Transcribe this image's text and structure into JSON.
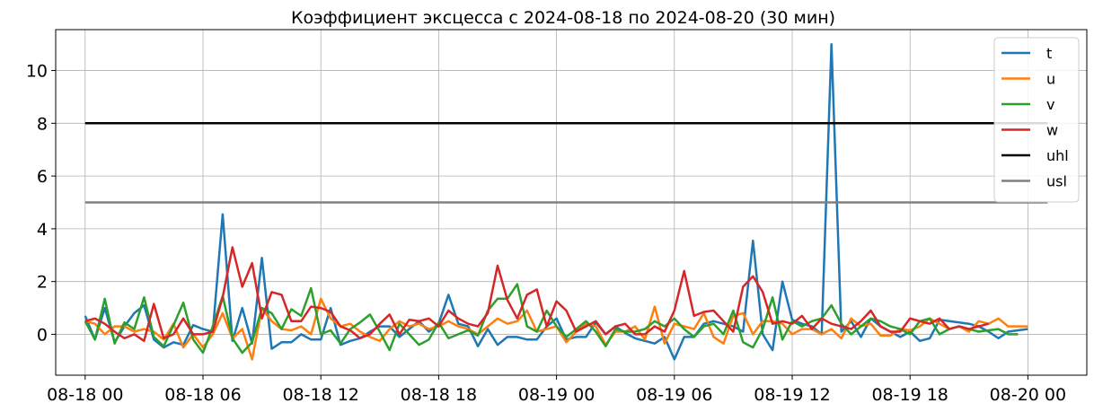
{
  "chart_data": {
    "type": "line",
    "title": "Коэффициент эксцесса с 2024-08-18 по 2024-08-20 (30 мин)",
    "xlabel": "",
    "ylabel": "",
    "x_start": "2024-08-18 00:00",
    "x_end": "2024-08-20 00:00",
    "x_step_minutes": 30,
    "xlim": [
      "2024-08-17 22:30",
      "2024-08-20 03:00"
    ],
    "ylim": [
      -1.55,
      11.55
    ],
    "x_ticks": [
      {
        "value": "2024-08-18 00:00",
        "label": "08-18 00"
      },
      {
        "value": "2024-08-18 06:00",
        "label": "08-18 06"
      },
      {
        "value": "2024-08-18 12:00",
        "label": "08-18 12"
      },
      {
        "value": "2024-08-18 18:00",
        "label": "08-18 18"
      },
      {
        "value": "2024-08-19 00:00",
        "label": "08-19 00"
      },
      {
        "value": "2024-08-19 06:00",
        "label": "08-19 06"
      },
      {
        "value": "2024-08-19 12:00",
        "label": "08-19 12"
      },
      {
        "value": "2024-08-19 18:00",
        "label": "08-19 18"
      },
      {
        "value": "2024-08-20 00:00",
        "label": "08-20 00"
      }
    ],
    "y_ticks": [
      0,
      2,
      4,
      6,
      8,
      10
    ],
    "grid": true,
    "legend_position": "top-right",
    "series": [
      {
        "name": "t",
        "color": "#1f77b4",
        "values": [
          0.7,
          -0.2,
          1.0,
          -0.3,
          0.3,
          0.8,
          1.1,
          -0.2,
          -0.5,
          -0.3,
          -0.4,
          0.35,
          0.2,
          0.1,
          4.55,
          -0.25,
          1.0,
          -0.35,
          2.9,
          -0.55,
          -0.3,
          -0.3,
          0.0,
          -0.2,
          -0.2,
          1.0,
          -0.4,
          -0.25,
          -0.15,
          0.1,
          0.3,
          0.3,
          -0.1,
          0.2,
          0.5,
          0.1,
          0.4,
          1.5,
          0.4,
          0.3,
          -0.45,
          0.2,
          -0.4,
          -0.1,
          -0.1,
          -0.2,
          -0.2,
          0.3,
          0.6,
          -0.2,
          -0.1,
          -0.1,
          0.45,
          0.0,
          0.3,
          0.05,
          -0.15,
          -0.25,
          -0.35,
          -0.1,
          -0.95,
          -0.1,
          -0.1,
          0.4,
          0.5,
          0.4,
          0.3,
          0.1,
          3.55,
          0.0,
          -0.6,
          2.0,
          0.55,
          0.4,
          0.3,
          0.0,
          11.0,
          0.1,
          0.5,
          -0.1,
          0.6,
          0.3,
          0.1,
          -0.1,
          0.1,
          -0.25,
          -0.15,
          0.55,
          0.5,
          0.45,
          0.4,
          0.3,
          0.1,
          -0.15,
          0.1,
          0.15,
          0.2
        ]
      },
      {
        "name": "u",
        "color": "#ff7f0e",
        "values": [
          0.5,
          0.4,
          0.0,
          0.3,
          0.3,
          0.1,
          0.2,
          0.1,
          -0.2,
          0.4,
          -0.5,
          0.0,
          -0.5,
          0.0,
          0.8,
          -0.15,
          0.2,
          -0.95,
          1.0,
          0.5,
          0.2,
          0.15,
          0.3,
          0.0,
          1.35,
          0.6,
          0.3,
          0.4,
          0.1,
          -0.1,
          -0.25,
          0.2,
          0.5,
          0.3,
          0.4,
          0.2,
          0.3,
          0.5,
          0.3,
          0.2,
          0.0,
          0.3,
          0.6,
          0.4,
          0.5,
          0.9,
          0.1,
          0.2,
          0.3,
          -0.3,
          0.1,
          0.4,
          0.3,
          -0.4,
          0.1,
          0.1,
          0.3,
          -0.2,
          1.05,
          -0.35,
          0.4,
          0.3,
          0.2,
          0.8,
          -0.1,
          -0.35,
          0.7,
          0.8,
          0.0,
          0.5,
          0.5,
          0.4,
          0.0,
          0.2,
          0.2,
          0.0,
          0.2,
          -0.15,
          0.6,
          0.3,
          0.4,
          -0.05,
          -0.05,
          0.2,
          0.15,
          0.3,
          0.6,
          0.4,
          0.2,
          0.3,
          0.1,
          0.5,
          0.4,
          0.6,
          0.3,
          0.3,
          0.3
        ]
      },
      {
        "name": "v",
        "color": "#2ca02c",
        "values": [
          0.5,
          -0.2,
          1.35,
          -0.35,
          0.45,
          0.2,
          1.4,
          -0.1,
          -0.45,
          0.35,
          1.2,
          -0.2,
          -0.7,
          0.3,
          1.45,
          -0.15,
          -0.7,
          -0.3,
          1.0,
          0.8,
          0.2,
          0.95,
          0.7,
          1.75,
          0.0,
          0.15,
          -0.35,
          0.2,
          0.45,
          0.75,
          0.1,
          -0.6,
          0.4,
          0.0,
          -0.4,
          -0.2,
          0.45,
          -0.15,
          0.0,
          0.15,
          -0.05,
          0.9,
          1.35,
          1.35,
          1.9,
          0.3,
          0.1,
          0.9,
          0.3,
          -0.1,
          0.2,
          0.5,
          0.1,
          -0.45,
          0.2,
          0.1,
          0.1,
          0.2,
          0.5,
          0.3,
          0.6,
          0.2,
          -0.1,
          0.3,
          0.4,
          0.0,
          0.9,
          -0.3,
          -0.5,
          0.2,
          1.4,
          -0.2,
          0.5,
          0.3,
          0.5,
          0.6,
          1.1,
          0.4,
          0.0,
          0.3,
          0.6,
          0.5,
          0.3,
          0.2,
          0.0,
          0.5,
          0.6,
          0.0,
          0.2,
          0.3,
          0.2,
          0.1,
          0.15,
          0.2,
          0.0,
          0.0
        ]
      },
      {
        "name": "w",
        "color": "#d62728",
        "values": [
          0.5,
          0.6,
          0.4,
          0.1,
          -0.15,
          0.0,
          -0.25,
          1.15,
          -0.15,
          0.0,
          0.6,
          0.0,
          0.0,
          0.1,
          1.4,
          3.3,
          1.8,
          2.7,
          0.6,
          1.6,
          1.5,
          0.5,
          0.5,
          1.05,
          1.0,
          0.85,
          0.3,
          0.15,
          -0.15,
          0.0,
          0.4,
          0.75,
          0.0,
          0.55,
          0.5,
          0.6,
          0.3,
          0.9,
          0.6,
          0.4,
          0.3,
          0.8,
          2.6,
          1.3,
          0.6,
          1.5,
          1.7,
          0.3,
          1.25,
          0.9,
          0.1,
          0.3,
          0.5,
          0.0,
          0.3,
          0.4,
          0.0,
          0.0,
          0.3,
          0.1,
          0.9,
          2.4,
          0.7,
          0.85,
          0.9,
          0.5,
          0.1,
          1.8,
          2.2,
          1.6,
          0.4,
          0.5,
          0.4,
          0.7,
          0.2,
          0.6,
          0.4,
          0.3,
          0.2,
          0.5,
          0.9,
          0.3,
          0.1,
          0.1,
          0.6,
          0.5,
          0.4,
          0.6,
          0.2,
          0.3,
          0.2,
          0.3,
          0.4
        ]
      },
      {
        "name": "uhl",
        "color": "#000000",
        "values": [
          8,
          8
        ]
      },
      {
        "name": "usl",
        "color": "#808080",
        "values": [
          5,
          5
        ]
      }
    ]
  }
}
